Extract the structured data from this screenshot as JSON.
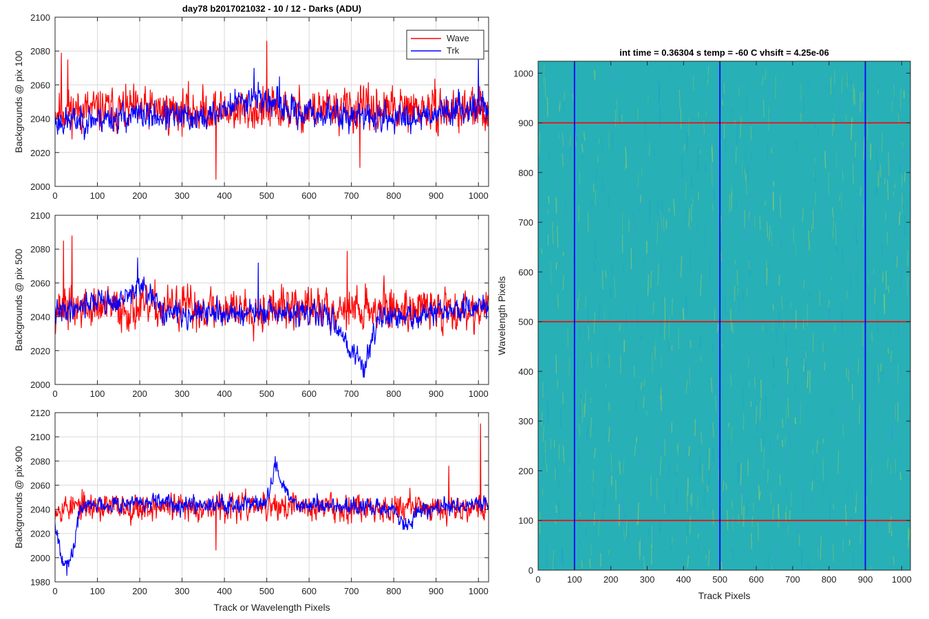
{
  "figure": {
    "background": "#ffffff"
  },
  "chart_data": [
    {
      "type": "line",
      "title": "day78 b2017021032 - 10 / 12 - Darks (ADU)",
      "xlabel": "",
      "ylabel": "Backgrounds @ pix 100",
      "xlim": [
        0,
        1024
      ],
      "ylim": [
        2000,
        2100
      ],
      "xticks": [
        0,
        100,
        200,
        300,
        400,
        500,
        600,
        700,
        800,
        900,
        1000
      ],
      "yticks": [
        2000,
        2020,
        2040,
        2060,
        2080,
        2100
      ],
      "grid": true,
      "legend": "top-right",
      "series": [
        {
          "name": "Wave",
          "color": "#ff0000",
          "mean": 2045,
          "std": 9,
          "drift": [
            [
              0,
              2045
            ],
            [
              1024,
              2045
            ]
          ],
          "seed": 11,
          "spikes": [
            [
              15,
              2079
            ],
            [
              500,
              2086
            ],
            [
              380,
              2004
            ],
            [
              720,
              2011
            ],
            [
              30,
              2075
            ]
          ]
        },
        {
          "name": "Trk",
          "color": "#0000ff",
          "mean": 2040,
          "std": 6,
          "drift": [
            [
              0,
              2038
            ],
            [
              200,
              2042
            ],
            [
              350,
              2040
            ],
            [
              470,
              2054
            ],
            [
              560,
              2044
            ],
            [
              800,
              2040
            ],
            [
              1010,
              2048
            ],
            [
              1024,
              2046
            ]
          ],
          "seed": 23,
          "spikes": [
            [
              1000,
              2078
            ],
            [
              470,
              2070
            ],
            [
              530,
              2065
            ]
          ]
        }
      ]
    },
    {
      "type": "line",
      "title": "",
      "xlabel": "",
      "ylabel": "Backgrounds @ pix 500",
      "xlim": [
        0,
        1024
      ],
      "ylim": [
        2000,
        2100
      ],
      "xticks": [
        0,
        100,
        200,
        300,
        400,
        500,
        600,
        700,
        800,
        900,
        1000
      ],
      "yticks": [
        2000,
        2020,
        2040,
        2060,
        2080,
        2100
      ],
      "grid": true,
      "series": [
        {
          "name": "Wave",
          "color": "#ff0000",
          "mean": 2045,
          "std": 9,
          "drift": [
            [
              0,
              2045
            ],
            [
              1024,
              2045
            ]
          ],
          "seed": 37,
          "spikes": [
            [
              40,
              2088
            ],
            [
              20,
              2085
            ],
            [
              690,
              2079
            ]
          ]
        },
        {
          "name": "Trk",
          "color": "#0000ff",
          "mean": 2042,
          "std": 5,
          "drift": [
            [
              0,
              2042
            ],
            [
              100,
              2050
            ],
            [
              150,
              2048
            ],
            [
              200,
              2058
            ],
            [
              260,
              2042
            ],
            [
              600,
              2042
            ],
            [
              660,
              2038
            ],
            [
              700,
              2020
            ],
            [
              730,
              2010
            ],
            [
              760,
              2038
            ],
            [
              850,
              2040
            ],
            [
              950,
              2044
            ],
            [
              1024,
              2046
            ]
          ],
          "seed": 41,
          "spikes": [
            [
              730,
              2004
            ],
            [
              195,
              2075
            ],
            [
              480,
              2072
            ]
          ]
        }
      ]
    },
    {
      "type": "line",
      "title": "",
      "xlabel": "Track or Wavelength Pixels",
      "ylabel": "Backgrounds @ pix 900",
      "xlim": [
        0,
        1024
      ],
      "ylim": [
        1980,
        2120
      ],
      "xticks": [
        0,
        100,
        200,
        300,
        400,
        500,
        600,
        700,
        800,
        900,
        1000
      ],
      "yticks": [
        1980,
        2000,
        2020,
        2040,
        2060,
        2080,
        2100,
        2120
      ],
      "grid": true,
      "series": [
        {
          "name": "Wave",
          "color": "#ff0000",
          "mean": 2042,
          "std": 8,
          "drift": [
            [
              0,
              2042
            ],
            [
              1024,
              2042
            ]
          ],
          "seed": 53,
          "spikes": [
            [
              1005,
              2111
            ],
            [
              380,
              2006
            ],
            [
              930,
              2076
            ]
          ]
        },
        {
          "name": "Trk",
          "color": "#0000ff",
          "mean": 2040,
          "std": 5,
          "drift": [
            [
              0,
              2030
            ],
            [
              10,
              2012
            ],
            [
              20,
              1998
            ],
            [
              30,
              1990
            ],
            [
              45,
              2010
            ],
            [
              60,
              2042
            ],
            [
              120,
              2045
            ],
            [
              500,
              2045
            ],
            [
              520,
              2075
            ],
            [
              560,
              2045
            ],
            [
              800,
              2040
            ],
            [
              830,
              2024
            ],
            [
              860,
              2040
            ],
            [
              1024,
              2045
            ]
          ],
          "seed": 67,
          "spikes": [
            [
              28,
              1985
            ],
            [
              520,
              2084
            ]
          ]
        }
      ]
    },
    {
      "type": "heatmap",
      "title": "int time = 0.36304 s   temp = -60 C   vhsift = 4.25e-06",
      "xlabel": "Track Pixels",
      "ylabel": "Wavelength Pixels",
      "xlim": [
        0,
        1024
      ],
      "ylim": [
        0,
        1024
      ],
      "xticks": [
        0,
        100,
        200,
        300,
        400,
        500,
        600,
        700,
        800,
        900,
        1000
      ],
      "yticks": [
        0,
        100,
        200,
        300,
        400,
        500,
        600,
        700,
        800,
        900,
        1000
      ],
      "base_color": "#27b0b6",
      "streak_colors": [
        "#7fc66a",
        "#3f9fd8",
        "#a3cf5e",
        "#1fa0c8"
      ],
      "vertical_lines": {
        "color": "#0000ff",
        "x": [
          100,
          500,
          900
        ]
      },
      "horizontal_lines": {
        "color": "#ff0000",
        "y": [
          100,
          500,
          900
        ]
      }
    }
  ]
}
